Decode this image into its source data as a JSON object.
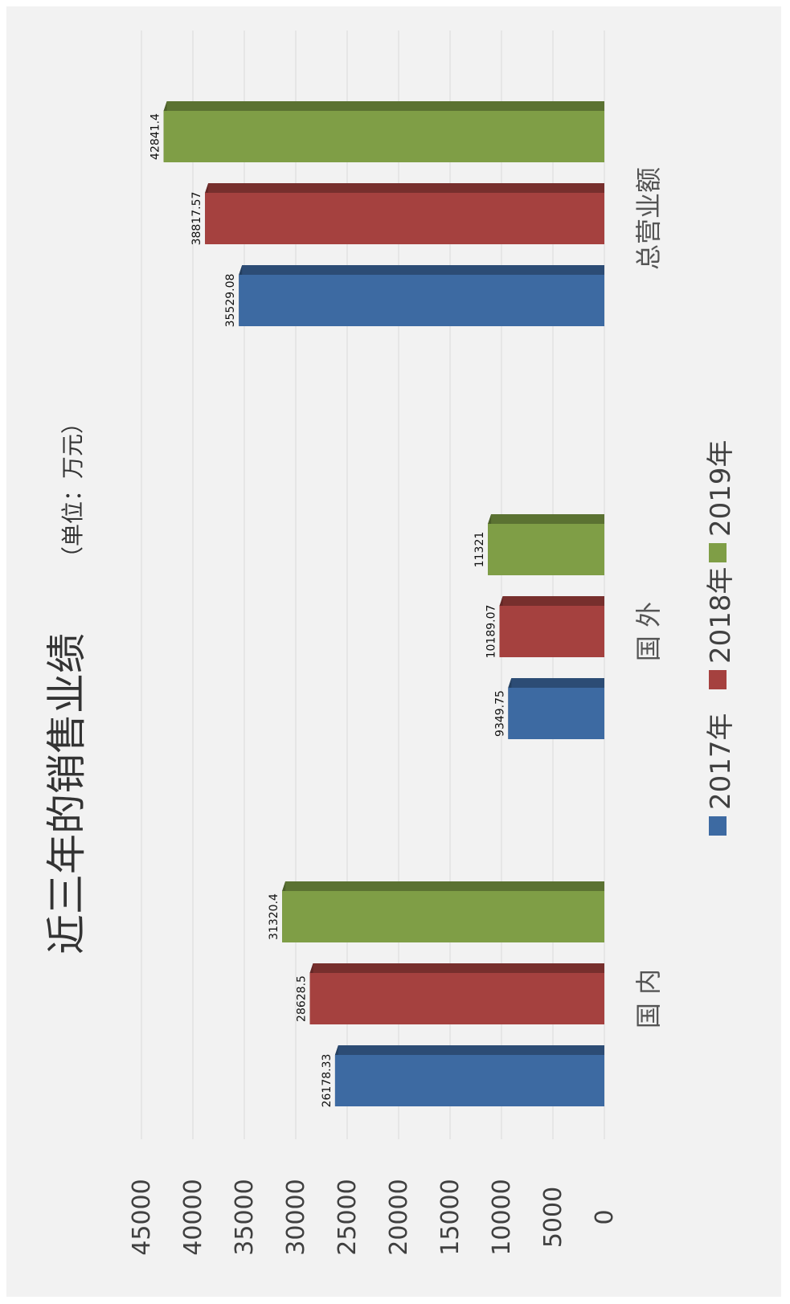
{
  "chart_data": {
    "type": "bar",
    "orientation": "vertical",
    "image_rotation": "rotated 90° counter-clockwise",
    "title": "近三年的销售业绩",
    "subtitle": "（单位：万元）",
    "categories": [
      "国 内",
      "国 外",
      "总营业额"
    ],
    "series": [
      {
        "name": "2017年",
        "color": "#3d6aa2",
        "values": [
          26178.33,
          9349.75,
          35529.08
        ],
        "labels": [
          "26178.33",
          "9349.75",
          "35529.08"
        ]
      },
      {
        "name": "2018年",
        "color": "#a5413f",
        "values": [
          28628.5,
          10189.07,
          38817.57
        ],
        "labels": [
          "28628.5",
          "10189.07",
          "38817.57"
        ]
      },
      {
        "name": "2019年",
        "color": "#7f9e46",
        "values": [
          31320.4,
          11321,
          42841.4
        ],
        "labels": [
          "31320.4",
          "11321",
          "42841.4"
        ]
      }
    ],
    "ylim": [
      0,
      45000
    ],
    "yticks": [
      "0",
      "5000",
      "10000",
      "15000",
      "20000",
      "25000",
      "30000",
      "35000",
      "40000",
      "45000"
    ],
    "grid": true,
    "legend": "bottom",
    "style": "3d-bars"
  }
}
